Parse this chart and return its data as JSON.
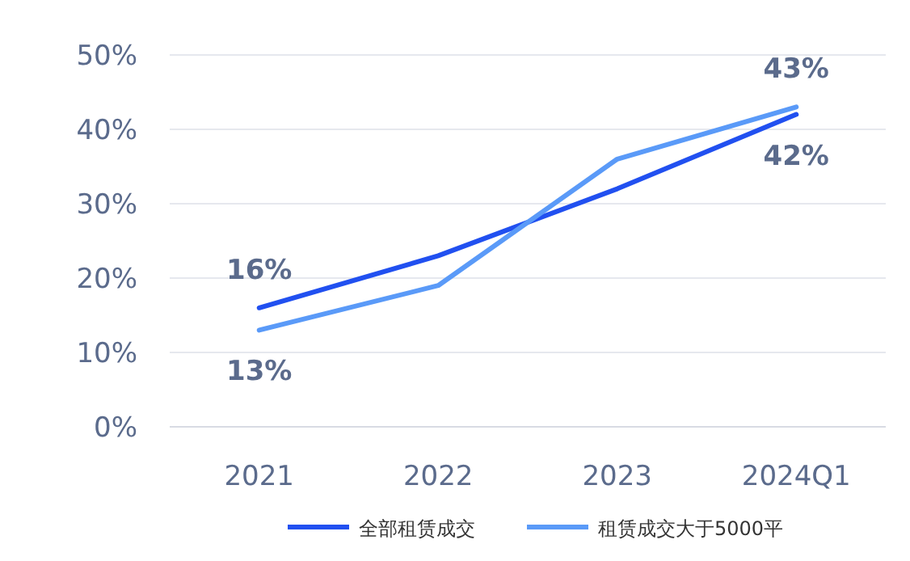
{
  "chart_data": {
    "type": "line",
    "categories": [
      "2021",
      "2022",
      "2023",
      "2024Q1"
    ],
    "series": [
      {
        "name": "全部租赁成交",
        "color": "#2150f0",
        "values": [
          16,
          23,
          32,
          42
        ],
        "value_labels": [
          "16%",
          null,
          null,
          "42%"
        ]
      },
      {
        "name": "租赁成交大于5000平",
        "color": "#5a9af8",
        "values": [
          13,
          19,
          36,
          43
        ],
        "value_labels": [
          "13%",
          null,
          null,
          "43%"
        ]
      }
    ],
    "ylim": [
      0,
      50
    ],
    "yticks": [
      {
        "value": 0,
        "label": "0%"
      },
      {
        "value": 10,
        "label": "10%"
      },
      {
        "value": 20,
        "label": "20%"
      },
      {
        "value": 30,
        "label": "30%"
      },
      {
        "value": 40,
        "label": "40%"
      },
      {
        "value": 50,
        "label": "50%"
      }
    ],
    "grid": "y",
    "legend": "bottom",
    "marker": "none",
    "line_style": "solid"
  }
}
